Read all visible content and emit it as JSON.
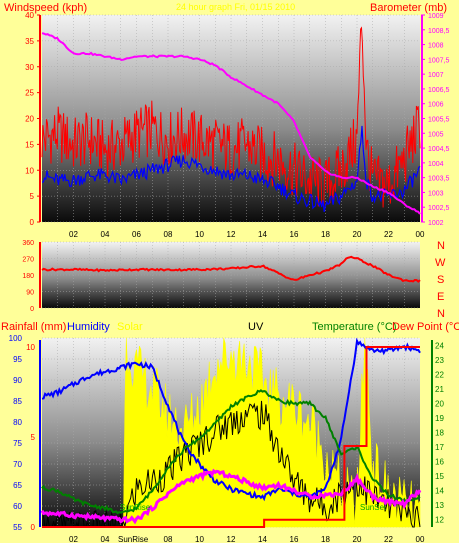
{
  "colors": {
    "background": "#ffff99",
    "wind": "#ff0000",
    "gust_avg": "#0000ff",
    "barometer": "#ff00ff",
    "wind_dir": "#ff0000",
    "humidity": "#0000ff",
    "solar": "#ffff00",
    "uv": "#000000",
    "temperature": "#008000",
    "dewpoint": "#ff00ff",
    "rainfall": "#ff0000"
  },
  "header": {
    "left_label": "Windspeed (kph)",
    "center_label": "24 hour graph Fri, 01/15 2010",
    "right_label": "Barometer (mb)"
  },
  "bottom_header": {
    "rainfall_label": "Rainfall (mm)",
    "humidity_label": "Humidity",
    "solar_label": "Solar",
    "uv_label": "UV",
    "temperature_label": "Temperature (°C)",
    "dewpoint_label": "Dew Point (°C)"
  },
  "compass": {
    "n": "N",
    "w": "W",
    "s": "S",
    "e": "E",
    "n2": "N"
  },
  "sun_labels": {
    "sunrise": "SunRise",
    "sunset": "SunSet"
  },
  "chart_data": [
    {
      "type": "line",
      "title": "24 hour graph Fri, 01/15 2010",
      "ylabel": "Windspeed (kph)",
      "y2label": "Barometer (mb)",
      "ylim": [
        0,
        40
      ],
      "y2lim": [
        1002,
        1009
      ],
      "y_ticks": [
        "0",
        "5",
        "10",
        "15",
        "20",
        "25",
        "30",
        "35",
        "40"
      ],
      "y2_ticks": [
        "1002",
        "1002,5",
        "1003",
        "1003,5",
        "1004",
        "1004,5",
        "1005",
        "1005,5",
        "1006",
        "1006,5",
        "1007",
        "1007,5",
        "1008",
        "1008,5",
        "1009"
      ],
      "x_ticks": [
        "02",
        "04",
        "06",
        "08",
        "10",
        "12",
        "14",
        "16",
        "18",
        "20",
        "22",
        "00"
      ],
      "x_hours": [
        0,
        24
      ],
      "series": [
        {
          "name": "Windspeed",
          "x": [
            0,
            1,
            2,
            3,
            4,
            5,
            6,
            7,
            8,
            9,
            10,
            11,
            12,
            13,
            14,
            15,
            16,
            17,
            18,
            19,
            20,
            20.3,
            20.6,
            21,
            22,
            23,
            24
          ],
          "values": [
            16,
            17,
            15,
            16,
            14,
            15,
            17,
            18,
            16,
            17,
            16,
            15,
            14,
            15,
            13,
            12,
            10,
            8,
            7,
            10,
            16,
            40,
            14,
            8,
            7,
            12,
            19
          ]
        },
        {
          "name": "Average",
          "x": [
            0,
            1,
            2,
            3,
            4,
            5,
            6,
            7,
            8,
            9,
            10,
            11,
            12,
            13,
            14,
            15,
            16,
            17,
            18,
            19,
            20,
            20.3,
            20.6,
            21,
            22,
            23,
            24
          ],
          "values": [
            9,
            8,
            8,
            9,
            9,
            8,
            9,
            10,
            11,
            12,
            11,
            10,
            9,
            9,
            8,
            7,
            5,
            4,
            3,
            5,
            8,
            18,
            8,
            5,
            5,
            6,
            10
          ]
        },
        {
          "name": "Barometer",
          "axis": "right",
          "x": [
            0,
            1,
            2,
            3,
            4,
            5,
            6,
            7,
            8,
            9,
            10,
            11,
            12,
            13,
            14,
            15,
            16,
            17,
            18,
            19,
            20,
            21,
            22,
            23,
            24
          ],
          "values": [
            1008.4,
            1008.2,
            1007.7,
            1007.7,
            1007.6,
            1007.5,
            1007.6,
            1007.6,
            1007.6,
            1007.6,
            1007.5,
            1007.3,
            1006.9,
            1006.6,
            1006.3,
            1006.0,
            1005.4,
            1004.2,
            1003.7,
            1003.5,
            1003.5,
            1003.2,
            1003.0,
            1002.6,
            1002.3
          ]
        }
      ]
    },
    {
      "type": "line",
      "ylabel": "Wind direction",
      "ylim": [
        0,
        360
      ],
      "y_ticks": [
        "0",
        "90",
        "180",
        "270",
        "360"
      ],
      "x_ticks": [
        "02",
        "04",
        "06",
        "08",
        "10",
        "12",
        "14",
        "16",
        "18",
        "20",
        "22",
        "00"
      ],
      "series": [
        {
          "name": "Wind direction",
          "x": [
            0,
            2,
            4,
            6,
            8,
            10,
            12,
            14,
            15,
            16,
            17,
            18,
            19,
            19.5,
            20,
            21,
            22,
            23,
            24
          ],
          "values": [
            210,
            210,
            205,
            210,
            208,
            210,
            215,
            230,
            190,
            150,
            180,
            200,
            240,
            280,
            270,
            230,
            180,
            150,
            148
          ]
        }
      ]
    },
    {
      "type": "line",
      "ylabel": "Humidity",
      "ylim": [
        55,
        100
      ],
      "y_ticks": [
        "55",
        "60",
        "65",
        "70",
        "75",
        "80",
        "85",
        "90",
        "95",
        "100"
      ],
      "rain_ticks": [
        "0",
        "5",
        "10"
      ],
      "y2_ticks": [
        "12",
        "13",
        "14",
        "15",
        "16",
        "17",
        "18",
        "19",
        "20",
        "21",
        "22",
        "23",
        "24"
      ],
      "y2lim": [
        11.5,
        24.5
      ],
      "x_ticks": [
        "02",
        "04",
        "06",
        "08",
        "10",
        "12",
        "14",
        "16",
        "18",
        "20",
        "22",
        "00"
      ],
      "series": [
        {
          "name": "Humidity",
          "x": [
            0,
            1,
            2,
            3,
            4,
            5,
            6,
            7,
            8,
            9,
            10,
            11,
            12,
            13,
            14,
            15,
            16,
            17,
            18,
            19,
            20,
            21,
            22,
            23,
            24
          ],
          "values": [
            86,
            87,
            89,
            91,
            92,
            93,
            94,
            93,
            84,
            75,
            70,
            66,
            64,
            63,
            62,
            64,
            63,
            62,
            64,
            76,
            99,
            97,
            97,
            98,
            97
          ]
        },
        {
          "name": "Solar",
          "x": [
            0,
            5.2,
            5.3,
            6,
            7,
            8,
            9,
            10,
            11,
            12,
            13,
            14,
            15,
            16,
            17,
            18,
            19,
            20,
            20.5,
            21,
            22,
            23,
            24
          ],
          "values": [
            55,
            55,
            99,
            92,
            88,
            82,
            78,
            84,
            94,
            96,
            95,
            90,
            86,
            84,
            80,
            72,
            64,
            60,
            100,
            70,
            63,
            60,
            58
          ]
        },
        {
          "name": "UV",
          "x": [
            0,
            5,
            6,
            7,
            8,
            9,
            10,
            11,
            12,
            13,
            14,
            15,
            16,
            17,
            18,
            19,
            20,
            21,
            22,
            23,
            24
          ],
          "values": [
            55,
            55,
            64,
            66,
            68,
            72,
            75,
            78,
            80,
            82,
            82,
            74,
            66,
            62,
            60,
            63,
            66,
            62,
            60,
            58,
            57
          ]
        },
        {
          "name": "Temperature",
          "axis": "right",
          "x": [
            0,
            1,
            2,
            3,
            4,
            5,
            6,
            7,
            8,
            9,
            10,
            11,
            12,
            13,
            14,
            15,
            16,
            17,
            18,
            19,
            20,
            21,
            22,
            23,
            24
          ],
          "values": [
            14.2,
            14.0,
            13.4,
            13.0,
            12.8,
            12.4,
            12.8,
            14.0,
            15.6,
            16.8,
            17.6,
            18.6,
            19.8,
            20.4,
            20.9,
            20.2,
            20.0,
            20.0,
            19.0,
            16.5,
            17.0,
            14.8,
            13.7,
            13.3,
            13.5
          ]
        },
        {
          "name": "Dew Point",
          "axis": "right",
          "x": [
            0,
            1,
            2,
            3,
            4,
            5,
            6,
            7,
            8,
            9,
            10,
            11,
            12,
            13,
            14,
            15,
            16,
            17,
            18,
            19,
            20,
            21,
            22,
            23,
            24
          ],
          "values": [
            12.5,
            12.4,
            12.3,
            12.2,
            12.1,
            12.0,
            12.0,
            12.8,
            13.8,
            14.6,
            15.0,
            15.3,
            15.0,
            14.6,
            14.2,
            14.4,
            14.0,
            13.6,
            13.7,
            13.8,
            14.8,
            13.6,
            13.2,
            13.1,
            14.0
          ]
        },
        {
          "name": "Rainfall",
          "x": [
            0,
            6,
            14,
            14.1,
            17,
            17.5,
            18.4,
            19,
            19.2,
            20,
            20.5,
            20.6,
            21,
            24
          ],
          "values": [
            0,
            0,
            0,
            0.4,
            0.4,
            0.4,
            0.4,
            0.4,
            4.5,
            4.5,
            4.5,
            10.0,
            10.0,
            10.0
          ]
        }
      ]
    }
  ]
}
